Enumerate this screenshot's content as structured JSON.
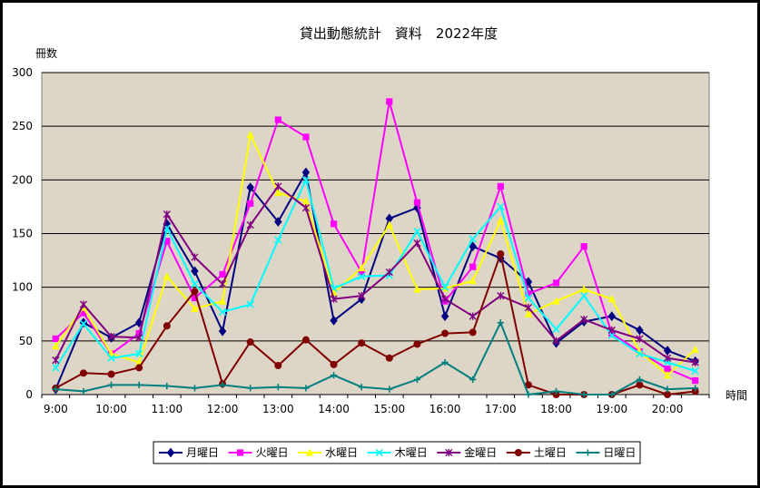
{
  "chart_data": {
    "type": "line",
    "title": "貸出動態統計　資料　2022年度",
    "ylabel": "冊数",
    "xlabel": "時間",
    "ylim": [
      0,
      300
    ],
    "yticks": [
      "0",
      "50",
      "100",
      "150",
      "200",
      "250",
      "300"
    ],
    "x_tick_labels": [
      "9:00",
      "10:00",
      "11:00",
      "12:00",
      "13:00",
      "14:00",
      "15:00",
      "16:00",
      "17:00",
      "18:00",
      "19:00",
      "20:00"
    ],
    "x": [
      "9:00",
      "9:30",
      "10:00",
      "10:30",
      "11:00",
      "11:30",
      "12:00",
      "12:30",
      "13:00",
      "13:30",
      "14:00",
      "14:30",
      "15:00",
      "15:30",
      "16:00",
      "16:30",
      "17:00",
      "17:30",
      "18:00",
      "18:30",
      "19:00",
      "19:30",
      "20:00",
      "20:30"
    ],
    "grid": "horizontal",
    "plot_background": "#ddd5c5",
    "legend_position": "bottom",
    "series": [
      {
        "name": "月曜日",
        "color": "#000080",
        "marker": "diamond",
        "values": [
          5,
          67,
          53,
          67,
          159,
          115,
          59,
          193,
          161,
          207,
          69,
          89,
          164,
          174,
          73,
          138,
          127,
          105,
          48,
          68,
          73,
          60,
          41,
          31
        ]
      },
      {
        "name": "火曜日",
        "color": "#ff00ff",
        "marker": "square",
        "values": [
          52,
          76,
          38,
          57,
          143,
          90,
          112,
          178,
          256,
          240,
          159,
          114,
          273,
          179,
          87,
          119,
          194,
          94,
          104,
          138,
          57,
          40,
          24,
          13
        ]
      },
      {
        "name": "水曜日",
        "color": "#ffff00",
        "marker": "triangle",
        "values": [
          45,
          81,
          38,
          30,
          110,
          80,
          87,
          242,
          188,
          180,
          95,
          118,
          158,
          98,
          99,
          106,
          162,
          75,
          87,
          98,
          89,
          40,
          18,
          42
        ]
      },
      {
        "name": "木曜日",
        "color": "#00ffff",
        "marker": "x",
        "values": [
          25,
          66,
          34,
          38,
          155,
          103,
          77,
          84,
          144,
          200,
          99,
          110,
          111,
          152,
          100,
          145,
          175,
          90,
          61,
          92,
          55,
          38,
          30,
          22
        ]
      },
      {
        "name": "金曜日",
        "color": "#800080",
        "marker": "star",
        "values": [
          32,
          84,
          54,
          53,
          168,
          128,
          103,
          158,
          194,
          174,
          89,
          92,
          114,
          141,
          89,
          73,
          92,
          81,
          50,
          70,
          60,
          52,
          34,
          30
        ]
      },
      {
        "name": "土曜日",
        "color": "#800000",
        "marker": "circle",
        "values": [
          6,
          20,
          19,
          25,
          64,
          96,
          10,
          49,
          27,
          51,
          28,
          48,
          34,
          47,
          57,
          58,
          131,
          9,
          0,
          0,
          0,
          9,
          0,
          3
        ]
      },
      {
        "name": "日曜日",
        "color": "#008080",
        "marker": "plus",
        "values": [
          5,
          3,
          9,
          9,
          8,
          6,
          9,
          6,
          7,
          6,
          18,
          7,
          5,
          14,
          30,
          14,
          67,
          0,
          3,
          0,
          0,
          14,
          5,
          6
        ]
      }
    ]
  }
}
